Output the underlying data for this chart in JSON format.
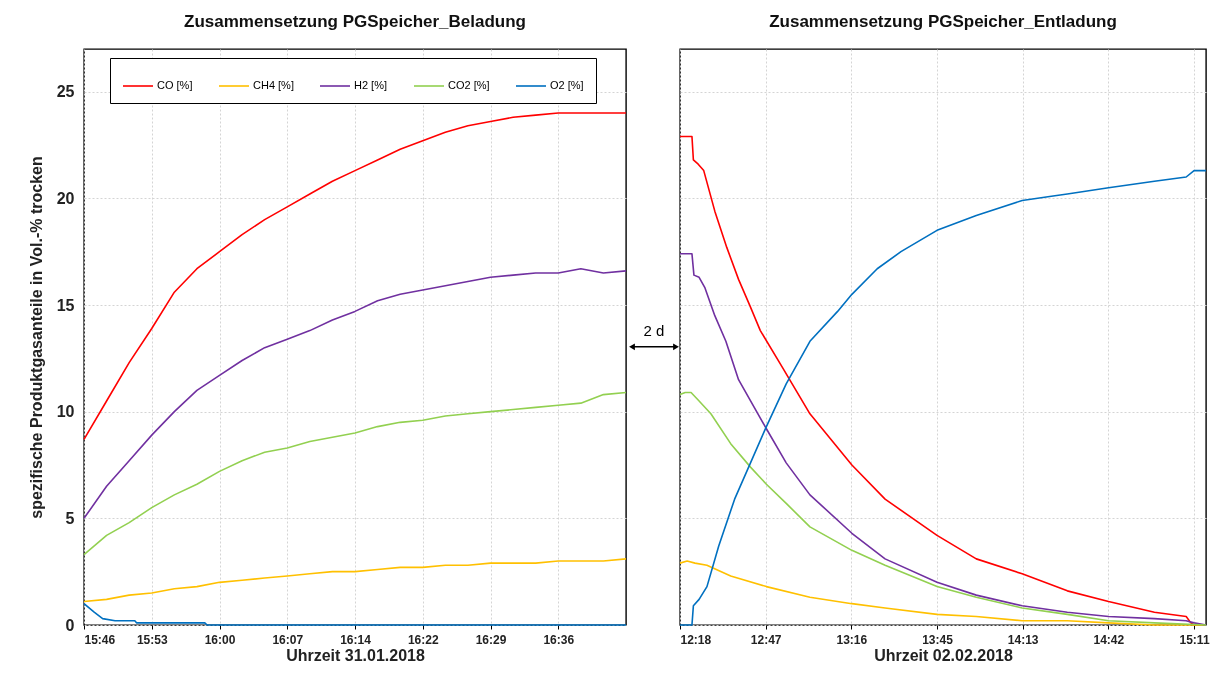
{
  "chart_data": [
    {
      "type": "line",
      "title": "Zusammensetzung PGSpeicher_Beladung",
      "xlabel": "Uhrzeit 31.01.2018",
      "ylabel": "spezifische Produktgasanteile in Vol.-% trocken",
      "x": [
        15.76,
        15.8,
        15.84,
        15.88,
        15.92,
        15.96,
        16.0,
        16.04,
        16.08,
        16.12,
        16.16,
        16.2,
        16.24,
        16.28,
        16.32,
        16.36,
        16.4,
        16.44,
        16.48,
        16.52,
        16.56,
        16.6,
        16.64,
        16.68,
        16.72
      ],
      "series": [
        {
          "name": "CO [%]",
          "color": "#ff0000",
          "values": [
            8.7,
            10.5,
            12.3,
            13.9,
            15.6,
            16.7,
            17.5,
            18.3,
            19.0,
            19.6,
            20.2,
            20.8,
            21.3,
            21.8,
            22.3,
            22.7,
            23.1,
            23.4,
            23.6,
            23.8,
            23.9,
            24.0,
            24.0,
            24.0,
            24.0
          ]
        },
        {
          "name": "CH4 [%]",
          "color": "#ffc000",
          "values": [
            1.1,
            1.2,
            1.4,
            1.5,
            1.7,
            1.8,
            2.0,
            2.1,
            2.2,
            2.3,
            2.4,
            2.5,
            2.5,
            2.6,
            2.7,
            2.7,
            2.8,
            2.8,
            2.9,
            2.9,
            2.9,
            3.0,
            3.0,
            3.0,
            3.1
          ]
        },
        {
          "name": "H2 [%]",
          "color": "#7030a0",
          "values": [
            5.0,
            6.5,
            7.7,
            8.9,
            10.0,
            11.0,
            11.7,
            12.4,
            13.0,
            13.4,
            13.8,
            14.3,
            14.7,
            15.2,
            15.5,
            15.7,
            15.9,
            16.1,
            16.3,
            16.4,
            16.5,
            16.5,
            16.7,
            16.5,
            16.6
          ]
        },
        {
          "name": "CO2 [%]",
          "color": "#92d050",
          "values": [
            3.3,
            4.2,
            4.8,
            5.5,
            6.1,
            6.6,
            7.2,
            7.7,
            8.1,
            8.3,
            8.6,
            8.8,
            9.0,
            9.3,
            9.5,
            9.6,
            9.8,
            9.9,
            10.0,
            10.1,
            10.2,
            10.3,
            10.4,
            10.8,
            10.9
          ]
        },
        {
          "name": "O2 [%]",
          "color": "#0070c0",
          "x": [
            15.76,
            15.778,
            15.793,
            15.815,
            15.85,
            15.853,
            15.974,
            15.978,
            16.72
          ],
          "values": [
            1.0,
            0.6,
            0.3,
            0.2,
            0.2,
            0.1,
            0.1,
            0.0,
            0.0
          ]
        }
      ],
      "xlim": [
        15.76,
        16.72
      ],
      "xticks": [
        {
          "value": 15.76,
          "label": "15:46"
        },
        {
          "value": 15.88,
          "label": "15:53"
        },
        {
          "value": 16.0,
          "label": "16:00"
        },
        {
          "value": 16.12,
          "label": "16:07"
        },
        {
          "value": 16.24,
          "label": "16:14"
        },
        {
          "value": 16.36,
          "label": "16:22"
        },
        {
          "value": 16.48,
          "label": "16:29"
        },
        {
          "value": 16.6,
          "label": "16:36"
        }
      ],
      "ylim": [
        0,
        27
      ],
      "yticks": [
        0,
        5,
        10,
        15,
        20,
        25
      ],
      "grid": true,
      "legend": "top"
    },
    {
      "type": "line",
      "title": "Zusammensetzung PGSpeicher_Entladung",
      "xlabel": "Uhrzeit 02.02.2018",
      "series": [
        {
          "color": "#ff0000",
          "x": [
            12.303,
            12.37,
            12.378,
            12.405,
            12.436,
            12.498,
            12.565,
            12.631,
            12.698,
            12.753,
            12.875,
            13.031,
            13.266,
            13.452,
            13.743,
            13.963,
            14.22,
            14.473,
            14.704,
            14.961,
            15.139,
            15.165,
            15.183,
            15.25
          ],
          "values": [
            22.9,
            22.9,
            21.8,
            21.6,
            21.3,
            19.4,
            17.7,
            16.2,
            14.9,
            13.8,
            12.1,
            9.9,
            7.5,
            5.9,
            4.2,
            3.1,
            2.4,
            1.6,
            1.1,
            0.6,
            0.4,
            0.1,
            0.0,
            0.0
          ]
        },
        {
          "color": "#ffc000",
          "x": [
            12.303,
            12.343,
            12.387,
            12.454,
            12.587,
            12.787,
            13.031,
            13.266,
            13.452,
            13.743,
            13.963,
            14.22,
            14.473,
            14.704,
            14.961,
            15.25
          ],
          "values": [
            2.9,
            3.0,
            2.9,
            2.8,
            2.3,
            1.8,
            1.3,
            1.0,
            0.8,
            0.5,
            0.4,
            0.2,
            0.2,
            0.1,
            0.0,
            0.0
          ]
        },
        {
          "color": "#7030a0",
          "x": [
            12.303,
            12.37,
            12.381,
            12.41,
            12.443,
            12.498,
            12.56,
            12.631,
            12.787,
            12.898,
            13.031,
            13.266,
            13.452,
            13.743,
            13.963,
            14.22,
            14.473,
            14.704,
            14.961,
            15.139,
            15.183,
            15.25
          ],
          "values": [
            17.4,
            17.4,
            16.4,
            16.3,
            15.8,
            14.5,
            13.3,
            11.5,
            9.2,
            7.6,
            6.1,
            4.3,
            3.1,
            2.0,
            1.4,
            0.9,
            0.6,
            0.4,
            0.3,
            0.2,
            0.1,
            0.0
          ]
        },
        {
          "color": "#92d050",
          "x": [
            12.303,
            12.332,
            12.365,
            12.41,
            12.476,
            12.587,
            12.698,
            12.787,
            12.898,
            13.031,
            13.266,
            13.452,
            13.743,
            13.963,
            14.22,
            14.473,
            14.704,
            14.961,
            15.25
          ],
          "values": [
            10.8,
            10.9,
            10.9,
            10.5,
            9.9,
            8.5,
            7.4,
            6.6,
            5.7,
            4.6,
            3.5,
            2.8,
            1.8,
            1.3,
            0.8,
            0.5,
            0.2,
            0.1,
            0.0
          ]
        },
        {
          "color": "#0070c0",
          "x": [
            12.303,
            12.37,
            12.378,
            12.41,
            12.454,
            12.52,
            12.609,
            12.698,
            12.787,
            12.898,
            13.031,
            13.186,
            13.266,
            13.408,
            13.541,
            13.743,
            13.963,
            14.22,
            14.384,
            14.473,
            14.704,
            14.961,
            15.139,
            15.183,
            15.25
          ],
          "values": [
            0.0,
            0.0,
            0.9,
            1.2,
            1.8,
            3.7,
            5.9,
            7.6,
            9.3,
            11.3,
            13.3,
            14.7,
            15.5,
            16.7,
            17.5,
            18.5,
            19.2,
            19.9,
            20.1,
            20.2,
            20.5,
            20.8,
            21.0,
            21.3,
            21.3
          ]
        }
      ],
      "xlim": [
        12.303,
        15.25
      ],
      "xticks": [
        {
          "value": 12.303,
          "label": "12:18"
        },
        {
          "value": 12.783,
          "label": "12:47"
        },
        {
          "value": 13.263,
          "label": "13:16"
        },
        {
          "value": 13.743,
          "label": "13:45"
        },
        {
          "value": 14.223,
          "label": "14:13"
        },
        {
          "value": 14.703,
          "label": "14:42"
        },
        {
          "value": 15.183,
          "label": "15:11"
        }
      ],
      "ylim": [
        0,
        27
      ],
      "yticks": [
        0,
        5,
        10,
        15,
        20,
        25
      ],
      "grid": true,
      "tick_labels": "x",
      "annotations": [
        "2 d"
      ]
    }
  ]
}
